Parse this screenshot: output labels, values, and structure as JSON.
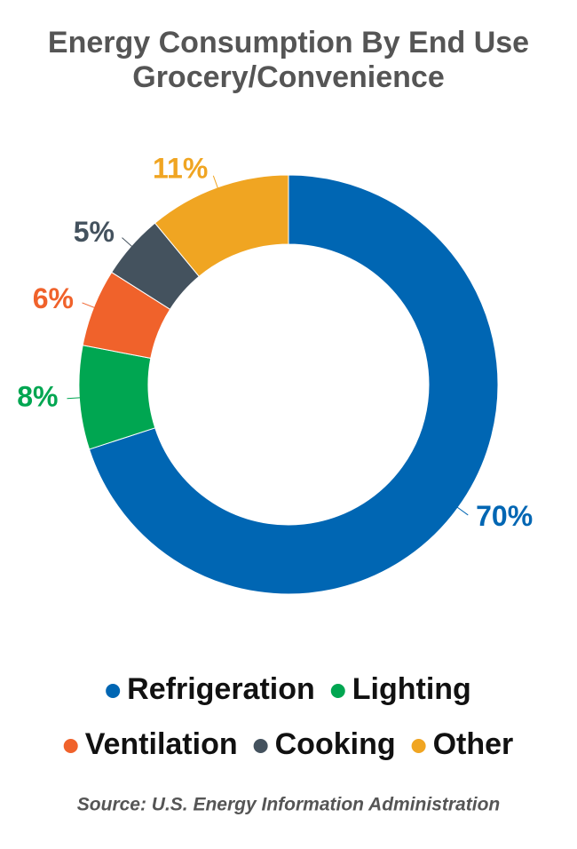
{
  "chart_data": {
    "type": "donut",
    "title": "Energy Consumption By End Use",
    "subtitle": "Grocery/Convenience",
    "categories": [
      "Refrigeration",
      "Lighting",
      "Ventilation",
      "Cooking",
      "Other"
    ],
    "values": [
      70,
      8,
      6,
      5,
      11
    ],
    "value_labels": [
      "70%",
      "8%",
      "6%",
      "5%",
      "11%"
    ],
    "colors": [
      "#0066b3",
      "#00a651",
      "#f0622b",
      "#44525e",
      "#f0a522"
    ],
    "source": "Source: U.S. Energy Information Administration"
  }
}
